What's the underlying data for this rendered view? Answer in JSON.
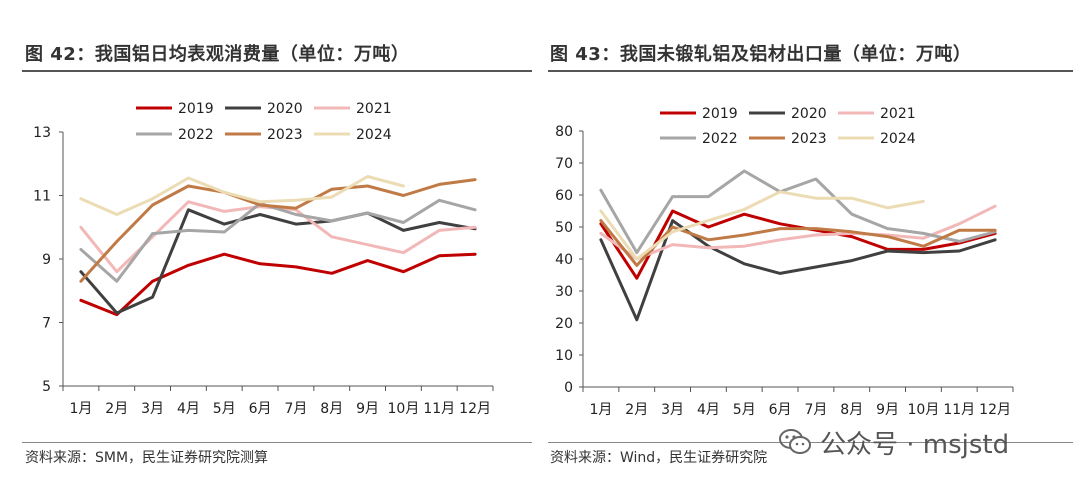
{
  "charts": [
    {
      "figure_title": "图 42：我国铝日均表观消费量（单位：万吨）",
      "source": "资料来源：SMM，民生证券研究院测算"
    },
    {
      "figure_title": "图 43：我国未锻轧铝及铝材出口量（单位：万吨）",
      "source": "资料来源：Wind，民生证券研究院"
    }
  ],
  "watermark": {
    "text": "公众号 · msjstd",
    "icon": "wechat-icon"
  },
  "series_colors": {
    "2019": "#c00000",
    "2020": "#404040",
    "2021": "#f2b8b8",
    "2022": "#a6a6a6",
    "2023": "#c07a45",
    "2024": "#ecdcb4"
  },
  "chart_data": [
    {
      "type": "line",
      "title": "我国铝日均表观消费量（单位：万吨）",
      "x": [
        "1月",
        "2月",
        "3月",
        "4月",
        "5月",
        "6月",
        "7月",
        "8月",
        "9月",
        "10月",
        "11月",
        "12月"
      ],
      "ylim": [
        5,
        13
      ],
      "yticks": [
        5,
        7,
        9,
        11,
        13
      ],
      "grid": false,
      "legend": "top",
      "series": [
        {
          "name": "2019",
          "values": [
            7.7,
            7.25,
            8.3,
            8.8,
            9.15,
            8.85,
            8.75,
            8.55,
            8.95,
            8.6,
            9.1,
            9.15
          ]
        },
        {
          "name": "2020",
          "values": [
            8.6,
            7.3,
            7.8,
            10.55,
            10.1,
            10.4,
            10.1,
            10.2,
            10.45,
            9.9,
            10.15,
            9.95
          ]
        },
        {
          "name": "2021",
          "values": [
            10.0,
            8.6,
            9.7,
            10.8,
            10.5,
            10.65,
            10.55,
            9.7,
            9.45,
            9.2,
            9.9,
            10.0
          ]
        },
        {
          "name": "2022",
          "values": [
            9.3,
            8.3,
            9.8,
            9.9,
            9.85,
            10.75,
            10.4,
            10.2,
            10.45,
            10.15,
            10.85,
            10.55
          ]
        },
        {
          "name": "2023",
          "values": [
            8.3,
            9.55,
            10.7,
            11.3,
            11.1,
            10.7,
            10.6,
            11.2,
            11.3,
            11.0,
            11.35,
            11.5
          ]
        },
        {
          "name": "2024",
          "values": [
            10.9,
            10.4,
            10.9,
            11.55,
            11.1,
            10.8,
            10.85,
            10.95,
            11.6,
            11.3,
            null,
            null
          ]
        }
      ]
    },
    {
      "type": "line",
      "title": "我国未锻轧铝及铝材出口量（单位：万吨）",
      "x": [
        "1月",
        "2月",
        "3月",
        "4月",
        "5月",
        "6月",
        "7月",
        "8月",
        "9月",
        "10月",
        "11月",
        "12月"
      ],
      "ylim": [
        0,
        80
      ],
      "yticks": [
        0,
        10,
        20,
        30,
        40,
        50,
        60,
        70,
        80
      ],
      "grid": false,
      "legend": "top",
      "series": [
        {
          "name": "2019",
          "values": [
            51,
            34,
            55,
            50,
            54,
            51,
            49,
            47,
            43,
            43,
            45,
            48
          ]
        },
        {
          "name": "2020",
          "values": [
            46,
            21,
            52,
            44,
            38.5,
            35.5,
            37.5,
            39.5,
            42.5,
            42,
            42.5,
            46
          ]
        },
        {
          "name": "2021",
          "values": [
            48,
            40,
            44.5,
            43.5,
            44,
            46,
            47.5,
            48,
            47.5,
            46.5,
            51,
            56.5
          ]
        },
        {
          "name": "2022",
          "values": [
            61.5,
            42,
            59.5,
            59.5,
            67.5,
            61,
            65,
            54,
            49.5,
            48,
            45.5,
            48.5
          ]
        },
        {
          "name": "2023",
          "values": [
            52,
            38,
            50,
            46,
            47.5,
            49.5,
            49.5,
            48.5,
            47,
            44,
            49,
            49
          ]
        },
        {
          "name": "2024",
          "values": [
            55,
            40,
            48.5,
            52,
            55.5,
            61,
            59,
            59,
            56,
            58,
            null,
            null
          ]
        }
      ]
    }
  ]
}
